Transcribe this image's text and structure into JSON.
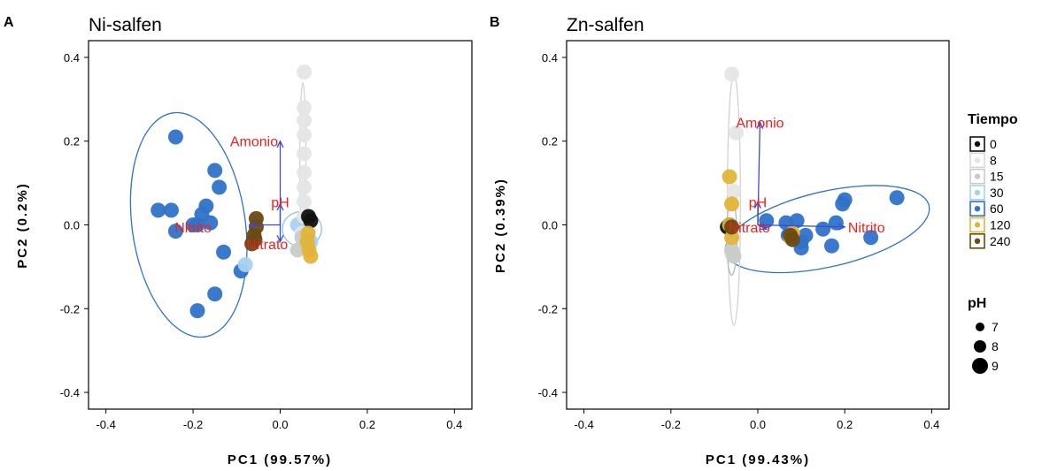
{
  "chart_data": [
    {
      "panel_letter": "A",
      "title": "Ni-salfen",
      "type": "scatter",
      "xlabel": "PC1 (99.57%)",
      "ylabel": "PC2 (0.2%)",
      "xlim": [
        -0.44,
        0.44
      ],
      "ylim": [
        -0.44,
        0.44
      ],
      "xticks": [
        "-0.4",
        "-0.2",
        "0.0",
        "0.2",
        "0.4"
      ],
      "yticks": [
        "0.4",
        "0.2",
        "0.0",
        "-0.2",
        "-0.4"
      ],
      "xtick_values": [
        -0.4,
        -0.2,
        0.0,
        0.2,
        0.4
      ],
      "ytick_values": [
        0.4,
        0.2,
        0.0,
        -0.2,
        -0.4
      ],
      "grid": false,
      "ellipses": [
        {
          "group": "60",
          "cx": -0.21,
          "cy": 0.0,
          "rx": 0.13,
          "ry": 0.27,
          "angle_deg": -8
        },
        {
          "group": "30",
          "cx": 0.05,
          "cy": -0.01,
          "rx": 0.045,
          "ry": 0.042,
          "angle_deg": 0
        },
        {
          "group": "8",
          "cx": 0.052,
          "cy": 0.15,
          "rx": 0.007,
          "ry": 0.19,
          "angle_deg": 0
        }
      ],
      "arrows": [
        {
          "label": "Amonio",
          "x": 0.0,
          "y": 0.2,
          "label_x": -0.06,
          "label_y": 0.2
        },
        {
          "label": "pH",
          "x": 0.0,
          "y": 0.05,
          "label_x": 0.0,
          "label_y": 0.055
        },
        {
          "label": "Nitrito",
          "x": -0.07,
          "y": 0.0,
          "label_x": -0.2,
          "label_y": -0.005
        },
        {
          "label": "Nitrato",
          "x": 0.0,
          "y": -0.04,
          "label_x": -0.03,
          "label_y": -0.045
        }
      ],
      "series": [
        {
          "name": "60",
          "points": [
            [
              -0.24,
              0.21
            ],
            [
              -0.15,
              0.13
            ],
            [
              -0.14,
              0.09
            ],
            [
              -0.28,
              0.035
            ],
            [
              -0.25,
              0.035
            ],
            [
              -0.17,
              0.045
            ],
            [
              -0.18,
              0.025
            ],
            [
              -0.16,
              0.005
            ],
            [
              -0.2,
              0.0
            ],
            [
              -0.24,
              -0.015
            ],
            [
              -0.13,
              -0.065
            ],
            [
              -0.19,
              0.0
            ],
            [
              -0.09,
              -0.11
            ],
            [
              -0.15,
              -0.165
            ],
            [
              -0.19,
              -0.205
            ]
          ]
        },
        {
          "name": "30",
          "points": [
            [
              -0.08,
              -0.095
            ],
            [
              0.06,
              -0.03
            ],
            [
              0.04,
              0.0
            ],
            [
              0.07,
              -0.04
            ]
          ]
        },
        {
          "name": "8",
          "points": [
            [
              0.055,
              0.365
            ],
            [
              0.055,
              0.28
            ],
            [
              0.055,
              0.25
            ],
            [
              0.055,
              0.215
            ],
            [
              0.055,
              0.17
            ],
            [
              0.055,
              0.125
            ],
            [
              0.055,
              0.09
            ],
            [
              0.055,
              0.055
            ],
            [
              0.055,
              0.02
            ],
            [
              0.05,
              -0.02
            ]
          ]
        },
        {
          "name": "15",
          "points": [
            [
              0.04,
              -0.06
            ],
            [
              0.05,
              -0.03
            ]
          ]
        },
        {
          "name": "0",
          "points": [
            [
              0.065,
              0.02
            ],
            [
              0.07,
              0.01
            ]
          ]
        },
        {
          "name": "120",
          "points": [
            [
              0.062,
              -0.04
            ],
            [
              0.066,
              -0.06
            ],
            [
              0.07,
              -0.075
            ],
            [
              0.064,
              -0.02
            ]
          ]
        },
        {
          "name": "240",
          "points": [
            [
              -0.055,
              0.015
            ],
            [
              -0.055,
              -0.005
            ],
            [
              -0.06,
              -0.025
            ],
            [
              -0.065,
              -0.045
            ],
            [
              -0.058,
              -0.035
            ]
          ]
        }
      ]
    },
    {
      "panel_letter": "B",
      "title": "Zn-salfen",
      "type": "scatter",
      "xlabel": "PC1 (99.43%)",
      "ylabel": "PC2 (0.39%)",
      "xlim": [
        -0.44,
        0.44
      ],
      "ylim": [
        -0.44,
        0.44
      ],
      "xticks": [
        "-0.4",
        "-0.2",
        "0.0",
        "0.2",
        "0.4"
      ],
      "yticks": [
        "0.4",
        "0.2",
        "0.0",
        "-0.2",
        "-0.4"
      ],
      "xtick_values": [
        -0.4,
        -0.2,
        0.0,
        0.2,
        0.4
      ],
      "ytick_values": [
        0.4,
        0.2,
        0.0,
        -0.2,
        -0.4
      ],
      "grid": false,
      "ellipses": [
        {
          "group": "60",
          "cx": 0.16,
          "cy": -0.01,
          "rx": 0.24,
          "ry": 0.09,
          "angle_deg": -13
        },
        {
          "group": "8",
          "cx": -0.055,
          "cy": 0.06,
          "rx": 0.015,
          "ry": 0.3,
          "angle_deg": 0
        },
        {
          "group": "15",
          "cx": -0.06,
          "cy": -0.03,
          "rx": 0.012,
          "ry": 0.09,
          "angle_deg": 0
        }
      ],
      "arrows": [
        {
          "label": "Amonio",
          "x": 0.005,
          "y": 0.245,
          "label_x": 0.005,
          "label_y": 0.245
        },
        {
          "label": "pH",
          "x": 0.0,
          "y": 0.055,
          "label_x": 0.0,
          "label_y": 0.055
        },
        {
          "label": "Nitrato",
          "x": 0.02,
          "y": -0.01,
          "label_x": -0.02,
          "label_y": -0.005
        },
        {
          "label": "Nitrito",
          "x": 0.2,
          "y": -0.005,
          "label_x": 0.25,
          "label_y": -0.005
        }
      ],
      "series": [
        {
          "name": "60",
          "points": [
            [
              0.32,
              0.065
            ],
            [
              0.2,
              0.06
            ],
            [
              0.195,
              0.05
            ],
            [
              0.18,
              0.005
            ],
            [
              0.26,
              -0.03
            ],
            [
              0.17,
              -0.05
            ],
            [
              0.1,
              -0.055
            ],
            [
              0.09,
              0.01
            ],
            [
              0.15,
              -0.01
            ],
            [
              0.11,
              -0.025
            ],
            [
              0.065,
              0.005
            ],
            [
              0.02,
              0.01
            ],
            [
              0.1,
              -0.04
            ],
            [
              0.07,
              -0.025
            ]
          ]
        },
        {
          "name": "8",
          "points": [
            [
              -0.06,
              0.36
            ],
            [
              -0.05,
              0.22
            ],
            [
              -0.055,
              0.08
            ],
            [
              -0.06,
              -0.07
            ]
          ]
        },
        {
          "name": "15",
          "points": [
            [
              -0.06,
              -0.06
            ],
            [
              -0.055,
              -0.075
            ]
          ]
        },
        {
          "name": "0",
          "points": [
            [
              -0.07,
              -0.005
            ],
            [
              -0.065,
              0.0
            ]
          ]
        },
        {
          "name": "120",
          "points": [
            [
              -0.065,
              0.115
            ],
            [
              -0.06,
              0.05
            ],
            [
              -0.065,
              0.0
            ],
            [
              -0.06,
              -0.03
            ],
            [
              0.08,
              -0.02
            ],
            [
              0.075,
              -0.03
            ]
          ]
        },
        {
          "name": "240",
          "points": [
            [
              -0.06,
              -0.005
            ],
            [
              0.075,
              -0.025
            ],
            [
              0.08,
              -0.035
            ]
          ]
        }
      ]
    }
  ],
  "colors": {
    "group_colors": {
      "0": "#111111",
      "8": "#e4e6e5",
      "15": "#c8ccc8",
      "30": "#a8d1ee",
      "60": "#2f72c9",
      "120": "#e1b43a",
      "240": "#6a4a14"
    },
    "ellipse_colors": {
      "60": "#2f72c9",
      "30": "#8fc3e6",
      "8": "#cfd3d0",
      "15": "#b6b9b6"
    },
    "arrow_color": "#3b4bd8",
    "arrow_label_color": "#e8231f"
  },
  "legend": {
    "tiempo_title": "Tiempo",
    "tiempo_items": [
      {
        "label": "0",
        "group": "0"
      },
      {
        "label": "8",
        "group": "8"
      },
      {
        "label": "15",
        "group": "15"
      },
      {
        "label": "30",
        "group": "30"
      },
      {
        "label": "60",
        "group": "60"
      },
      {
        "label": "120",
        "group": "120"
      },
      {
        "label": "240",
        "group": "240"
      }
    ],
    "ph_title": "pH",
    "ph_items": [
      {
        "label": "7",
        "size_level": 7
      },
      {
        "label": "8",
        "size_level": 8
      },
      {
        "label": "9",
        "size_level": 9
      }
    ]
  }
}
